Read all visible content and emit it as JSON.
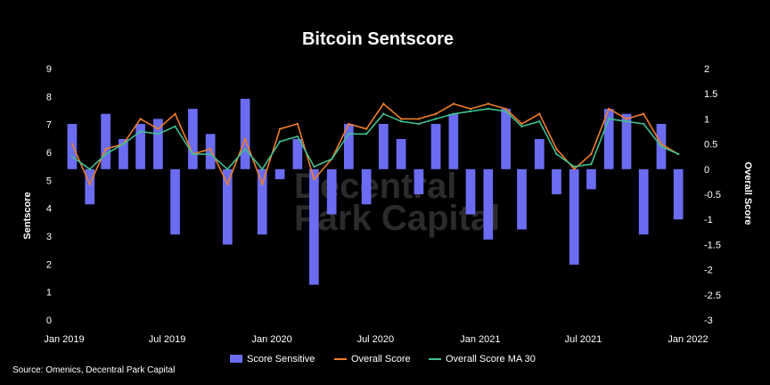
{
  "chart_data": {
    "type": "bar+line",
    "title": "Bitcoin Sentscore",
    "ylabel_left": "Sentscore",
    "ylabel_right": "Overall Score",
    "yleft_ticks": [
      "0",
      "1",
      "2",
      "3",
      "4",
      "5",
      "6",
      "7",
      "8",
      "9"
    ],
    "yright_ticks": [
      "2",
      "1.5",
      "1",
      "0.5",
      "0",
      "-0.5",
      "-1",
      "-1.5",
      "-2",
      "-2.5",
      "-3"
    ],
    "ylim_left": [
      0,
      9
    ],
    "ylim_right": [
      -3,
      2
    ],
    "x_ticks": [
      "Jan 2019",
      "Jul 2019",
      "Jan 2020",
      "Jul 2020",
      "Jan 2021",
      "Jul 2021",
      "Jan 2022"
    ],
    "xlim": [
      "2019-01-01",
      "2022-01-01"
    ],
    "grid": false,
    "legend_position": "bottom",
    "series": [
      {
        "name": "Score Sensitive",
        "type": "bar",
        "axis": "right",
        "color": "#6b6cf2",
        "x": [
          "2019-01",
          "2019-02",
          "2019-03",
          "2019-04",
          "2019-05",
          "2019-06",
          "2019-07",
          "2019-08",
          "2019-09",
          "2019-10",
          "2019-11",
          "2019-12",
          "2020-01",
          "2020-02",
          "2020-03",
          "2020-04",
          "2020-05",
          "2020-06",
          "2020-07",
          "2020-08",
          "2020-09",
          "2020-10",
          "2020-11",
          "2020-12",
          "2021-01",
          "2021-02",
          "2021-03",
          "2021-04",
          "2021-05",
          "2021-06",
          "2021-07",
          "2021-08",
          "2021-09",
          "2021-10",
          "2021-11",
          "2021-12"
        ],
        "values": [
          0.9,
          -0.7,
          1.1,
          0.6,
          0.9,
          1.0,
          -1.3,
          1.2,
          0.7,
          -1.5,
          1.4,
          -1.3,
          -0.2,
          0.6,
          -2.3,
          -0.9,
          0.9,
          -0.7,
          0.9,
          0.6,
          -0.5,
          0.9,
          1.1,
          -0.9,
          -1.4,
          1.2,
          -1.2,
          0.6,
          -0.5,
          -1.9,
          -0.4,
          1.2,
          1.1,
          -1.3,
          0.9,
          -1.0
        ]
      },
      {
        "name": "Overall Score",
        "type": "line",
        "axis": "right",
        "color": "#ef7d2a",
        "x": [
          "2019-01",
          "2019-02",
          "2019-03",
          "2019-04",
          "2019-05",
          "2019-06",
          "2019-07",
          "2019-08",
          "2019-09",
          "2019-10",
          "2019-11",
          "2019-12",
          "2020-01",
          "2020-02",
          "2020-03",
          "2020-04",
          "2020-05",
          "2020-06",
          "2020-07",
          "2020-08",
          "2020-09",
          "2020-10",
          "2020-11",
          "2020-12",
          "2021-01",
          "2021-02",
          "2021-03",
          "2021-04",
          "2021-05",
          "2021-06",
          "2021-07",
          "2021-08",
          "2021-09",
          "2021-10",
          "2021-11",
          "2021-12"
        ],
        "values": [
          0.5,
          -0.3,
          0.4,
          0.5,
          1.0,
          0.8,
          1.1,
          0.3,
          0.4,
          -0.3,
          0.6,
          -0.3,
          0.8,
          0.9,
          -0.2,
          0.2,
          0.9,
          0.8,
          1.3,
          1.0,
          1.0,
          1.1,
          1.3,
          1.2,
          1.3,
          1.2,
          0.9,
          1.1,
          0.4,
          0.0,
          0.3,
          1.2,
          1.0,
          1.1,
          0.5,
          0.3
        ]
      },
      {
        "name": "Overall Score MA 30",
        "type": "line",
        "axis": "right",
        "color": "#3fbf8f",
        "x": [
          "2019-01",
          "2019-02",
          "2019-03",
          "2019-04",
          "2019-05",
          "2019-06",
          "2019-07",
          "2019-08",
          "2019-09",
          "2019-10",
          "2019-11",
          "2019-12",
          "2020-01",
          "2020-02",
          "2020-03",
          "2020-04",
          "2020-05",
          "2020-06",
          "2020-07",
          "2020-08",
          "2020-09",
          "2020-10",
          "2020-11",
          "2020-12",
          "2021-01",
          "2021-02",
          "2021-03",
          "2021-04",
          "2021-05",
          "2021-06",
          "2021-07",
          "2021-08",
          "2021-09",
          "2021-10",
          "2021-11",
          "2021-12"
        ],
        "values": [
          0.25,
          0.0,
          0.3,
          0.5,
          0.75,
          0.7,
          0.85,
          0.3,
          0.3,
          0.0,
          0.4,
          0.0,
          0.55,
          0.65,
          0.05,
          0.2,
          0.7,
          0.7,
          1.1,
          0.95,
          0.9,
          1.0,
          1.1,
          1.15,
          1.2,
          1.15,
          0.85,
          0.95,
          0.3,
          0.05,
          0.1,
          1.0,
          0.95,
          0.9,
          0.45,
          0.3
        ]
      }
    ]
  },
  "legend": [
    {
      "label": "Score Sensitive",
      "color": "#6b6cf2",
      "kind": "box"
    },
    {
      "label": "Overall Score",
      "color": "#ef7d2a",
      "kind": "line"
    },
    {
      "label": "Overall Score MA 30",
      "color": "#3fbf8f",
      "kind": "line"
    }
  ],
  "source": "Source: Omenics, Decentral Park Capital",
  "watermark": {
    "line1": "Decentral",
    "line2": "Park Capital"
  }
}
